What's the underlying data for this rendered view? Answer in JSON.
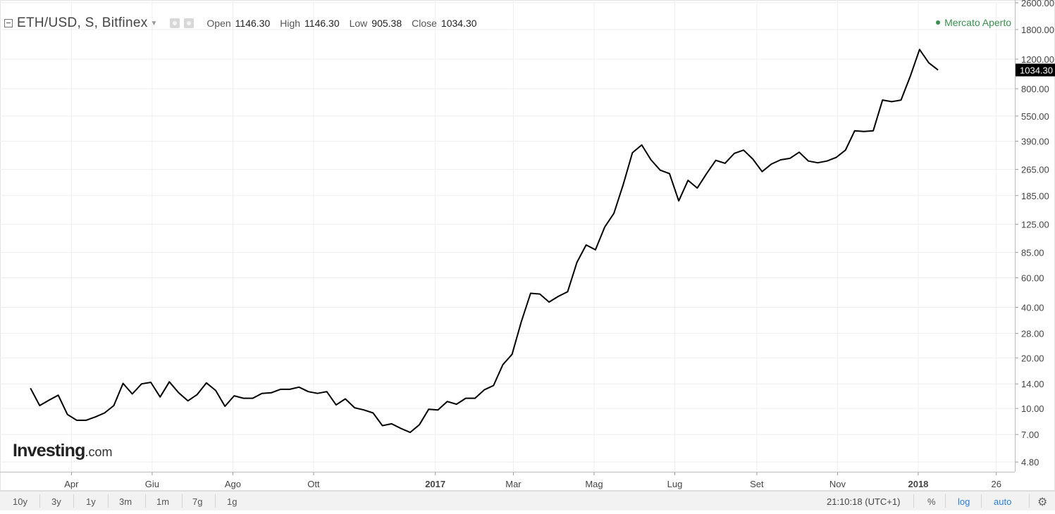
{
  "legend": {
    "symbol": "ETH/USD, S, Bitfinex",
    "open_label": "Open",
    "open": "1146.30",
    "high_label": "High",
    "high": "1146.30",
    "low_label": "Low",
    "low": "905.38",
    "close_label": "Close",
    "close": "1034.30"
  },
  "market_status": "Mercato Aperto",
  "logo": {
    "main": "Investing",
    "suffix": ".com"
  },
  "bottom_bar": {
    "ranges": [
      "10y",
      "3y",
      "1y",
      "3m",
      "1m",
      "7g",
      "1g"
    ],
    "time": "21:10:18",
    "tz": "(UTC+1)",
    "percent": "%",
    "log": "log",
    "auto": "auto"
  },
  "colors": {
    "line": "#000000",
    "grid": "#eeeeee",
    "market": "#3a8f4e",
    "price_tag": "#000000",
    "toggle_on": "#2a7fd4"
  },
  "chart_data": {
    "type": "line",
    "title": "ETH/USD, S, Bitfinex",
    "xlabel": "",
    "ylabel": "",
    "y_scale": "log",
    "grid": true,
    "x_ticks": [
      {
        "date": "2016-04-01",
        "label": "Apr",
        "bold": false
      },
      {
        "date": "2016-06-01",
        "label": "Giu",
        "bold": false
      },
      {
        "date": "2016-08-01",
        "label": "Ago",
        "bold": false
      },
      {
        "date": "2016-10-01",
        "label": "Ott",
        "bold": false
      },
      {
        "date": "2017-01-01",
        "label": "2017",
        "bold": true
      },
      {
        "date": "2017-03-01",
        "label": "Mar",
        "bold": false
      },
      {
        "date": "2017-05-01",
        "label": "Mag",
        "bold": false
      },
      {
        "date": "2017-07-01",
        "label": "Lug",
        "bold": false
      },
      {
        "date": "2017-09-01",
        "label": "Set",
        "bold": false
      },
      {
        "date": "2017-11-01",
        "label": "Nov",
        "bold": false
      },
      {
        "date": "2018-01-01",
        "label": "2018",
        "bold": true
      },
      {
        "date": "2018-03-01",
        "label": "26",
        "bold": false
      }
    ],
    "y_ticks": [
      4.8,
      7,
      10,
      14,
      20,
      28,
      40,
      60,
      85,
      125,
      185,
      265,
      390,
      550,
      800,
      1200,
      1800,
      2600
    ],
    "y_tick_labels": [
      "4.80",
      "7.00",
      "10.00",
      "14.00",
      "20.00",
      "28.00",
      "40.00",
      "60.00",
      "85.00",
      "125.00",
      "185.00",
      "265.00",
      "390.00",
      "550.00",
      "800.00",
      "1200.00",
      "1800.00",
      "2600.00"
    ],
    "ylim": [
      4.2,
      2700
    ],
    "x_range": [
      "2016-02-07",
      "2018-03-15"
    ],
    "last_value_label": "1034.30",
    "series": [
      {
        "values": [
          [
            "2016-03-01",
            13.2
          ],
          [
            "2016-03-08",
            10.4
          ],
          [
            "2016-03-15",
            11.2
          ],
          [
            "2016-03-22",
            12.0
          ],
          [
            "2016-03-29",
            9.2
          ],
          [
            "2016-04-05",
            8.5
          ],
          [
            "2016-04-12",
            8.5
          ],
          [
            "2016-04-19",
            8.9
          ],
          [
            "2016-04-26",
            9.4
          ],
          [
            "2016-05-03",
            10.4
          ],
          [
            "2016-05-10",
            14.1
          ],
          [
            "2016-05-17",
            12.2
          ],
          [
            "2016-05-24",
            14.0
          ],
          [
            "2016-05-31",
            14.3
          ],
          [
            "2016-06-07",
            11.7
          ],
          [
            "2016-06-14",
            14.4
          ],
          [
            "2016-06-21",
            12.4
          ],
          [
            "2016-06-28",
            11.1
          ],
          [
            "2016-07-05",
            12.1
          ],
          [
            "2016-07-12",
            14.2
          ],
          [
            "2016-07-19",
            12.8
          ],
          [
            "2016-07-26",
            10.3
          ],
          [
            "2016-08-02",
            11.9
          ],
          [
            "2016-08-09",
            11.5
          ],
          [
            "2016-08-16",
            11.5
          ],
          [
            "2016-08-23",
            12.3
          ],
          [
            "2016-08-30",
            12.4
          ],
          [
            "2016-09-06",
            13.0
          ],
          [
            "2016-09-13",
            13.0
          ],
          [
            "2016-09-20",
            13.4
          ],
          [
            "2016-09-27",
            12.6
          ],
          [
            "2016-10-04",
            12.3
          ],
          [
            "2016-10-11",
            12.6
          ],
          [
            "2016-10-18",
            10.5
          ],
          [
            "2016-10-25",
            11.4
          ],
          [
            "2016-11-01",
            10.1
          ],
          [
            "2016-11-08",
            9.8
          ],
          [
            "2016-11-15",
            9.4
          ],
          [
            "2016-11-22",
            7.9
          ],
          [
            "2016-11-29",
            8.1
          ],
          [
            "2016-12-06",
            7.6
          ],
          [
            "2016-12-13",
            7.2
          ],
          [
            "2016-12-20",
            8.0
          ],
          [
            "2016-12-27",
            9.9
          ],
          [
            "2017-01-03",
            9.8
          ],
          [
            "2017-01-10",
            11.0
          ],
          [
            "2017-01-17",
            10.6
          ],
          [
            "2017-01-24",
            11.5
          ],
          [
            "2017-01-31",
            11.5
          ],
          [
            "2017-02-07",
            12.9
          ],
          [
            "2017-02-14",
            13.7
          ],
          [
            "2017-02-21",
            18.2
          ],
          [
            "2017-02-28",
            21.0
          ],
          [
            "2017-03-07",
            32.8
          ],
          [
            "2017-03-14",
            48.5
          ],
          [
            "2017-03-21",
            48.0
          ],
          [
            "2017-03-28",
            43.0
          ],
          [
            "2017-04-04",
            46.5
          ],
          [
            "2017-04-11",
            49.5
          ],
          [
            "2017-04-18",
            74.0
          ],
          [
            "2017-04-25",
            94.0
          ],
          [
            "2017-05-02",
            88.0
          ],
          [
            "2017-05-09",
            120.0
          ],
          [
            "2017-05-16",
            145.0
          ],
          [
            "2017-05-23",
            215.0
          ],
          [
            "2017-05-30",
            333.0
          ],
          [
            "2017-06-06",
            370.0
          ],
          [
            "2017-06-13",
            302.0
          ],
          [
            "2017-06-20",
            262.0
          ],
          [
            "2017-06-27",
            250.0
          ],
          [
            "2017-07-04",
            172.0
          ],
          [
            "2017-07-11",
            228.0
          ],
          [
            "2017-07-18",
            205.0
          ],
          [
            "2017-07-25",
            250.0
          ],
          [
            "2017-08-01",
            300.0
          ],
          [
            "2017-08-08",
            288.0
          ],
          [
            "2017-08-15",
            330.0
          ],
          [
            "2017-08-22",
            345.0
          ],
          [
            "2017-08-29",
            305.0
          ],
          [
            "2017-09-05",
            257.0
          ],
          [
            "2017-09-12",
            285.0
          ],
          [
            "2017-09-19",
            302.0
          ],
          [
            "2017-09-26",
            308.0
          ],
          [
            "2017-10-03",
            335.0
          ],
          [
            "2017-10-10",
            297.0
          ],
          [
            "2017-10-17",
            290.0
          ],
          [
            "2017-10-24",
            297.0
          ],
          [
            "2017-10-31",
            312.0
          ],
          [
            "2017-11-07",
            345.0
          ],
          [
            "2017-11-14",
            450.0
          ],
          [
            "2017-11-21",
            445.0
          ],
          [
            "2017-11-28",
            450.0
          ],
          [
            "2017-12-05",
            685.0
          ],
          [
            "2017-12-12",
            670.0
          ],
          [
            "2017-12-19",
            685.0
          ],
          [
            "2017-12-26",
            950.0
          ],
          [
            "2018-01-02",
            1370.0
          ],
          [
            "2018-01-09",
            1140.0
          ],
          [
            "2018-01-16",
            1034.3
          ]
        ]
      }
    ]
  }
}
